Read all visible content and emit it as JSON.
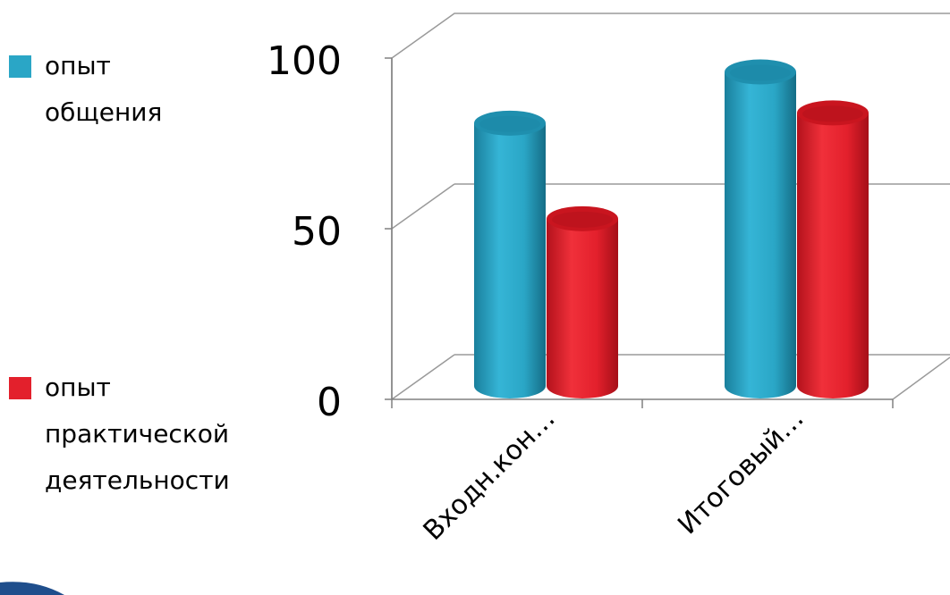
{
  "chart_data": {
    "type": "bar",
    "style": "3d-cylinder",
    "categories": [
      "Входн.кон…",
      "Итоговый…"
    ],
    "series": [
      {
        "name": "опыт общения",
        "legend_lines": [
          "опыт",
          "общения"
        ],
        "values": [
          77,
          92
        ]
      },
      {
        "name": "опыт практической деятельности",
        "legend_lines": [
          "опыт",
          "практической",
          "деятельности"
        ],
        "values": [
          49,
          80
        ]
      }
    ],
    "y_ticks": [
      "0",
      "50",
      "100"
    ],
    "ylim": [
      0,
      100
    ],
    "grid": true,
    "legend_position": "left",
    "colors": {
      "series": [
        "#2aa6c6",
        "#e3202c"
      ],
      "grid": "#9a9a9a",
      "text": "#000000"
    }
  }
}
